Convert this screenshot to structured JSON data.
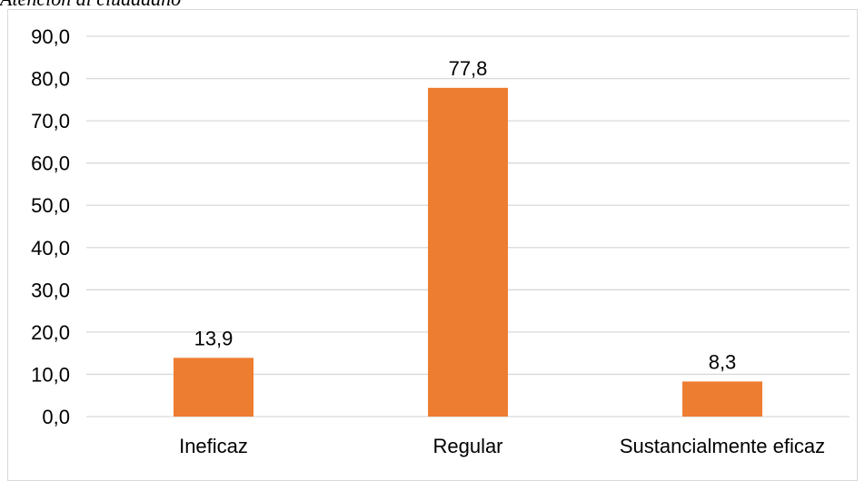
{
  "caption": "Atención al ciudadano",
  "chart_data": {
    "type": "bar",
    "title": "",
    "xlabel": "",
    "ylabel": "",
    "categories": [
      "Ineficaz",
      "Regular",
      "Sustancialmente eficaz"
    ],
    "values": [
      13.9,
      77.8,
      8.3
    ],
    "value_labels": [
      "13,9",
      "77,8",
      "8,3"
    ],
    "ylim": [
      0,
      90
    ],
    "yticks": [
      0,
      10,
      20,
      30,
      40,
      50,
      60,
      70,
      80,
      90
    ],
    "ytick_labels": [
      "0,0",
      "10,0",
      "20,0",
      "30,0",
      "40,0",
      "50,0",
      "60,0",
      "70,0",
      "80,0",
      "90,0"
    ],
    "grid": true,
    "legend": "none",
    "bar_color": "#ed7d31",
    "grid_color": "#d9d9d9"
  }
}
